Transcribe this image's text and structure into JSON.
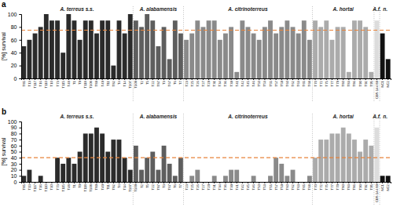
{
  "chart_data": [
    {
      "type": "bar",
      "panel_label": "a",
      "y_label": "[%] survival",
      "ylim": [
        0,
        100
      ],
      "yticks": [
        0,
        20,
        40,
        60,
        80,
        100
      ],
      "threshold": 75,
      "threshold_color": "#e8833a",
      "series": [
        {
          "name": "A. terreus s.s.",
          "color": "#2b2b2b",
          "categories": [
            "T85",
            "T13",
            "T117",
            "T16",
            "T110",
            "T10",
            "T73",
            "T115",
            "T48",
            "T1",
            "T9",
            "T118",
            "T108",
            "T89",
            "T49",
            "T11",
            "T82",
            "T4",
            "T14",
            "T107"
          ],
          "values": [
            50,
            60,
            70,
            80,
            100,
            90,
            90,
            40,
            100,
            90,
            60,
            90,
            90,
            70,
            90,
            90,
            20,
            90,
            70,
            100
          ]
        },
        {
          "name": "A. alabamensis",
          "color": "#5e5e5e",
          "categories": [
            "T109",
            "T2",
            "T5",
            "T22",
            "T87",
            "T3",
            "T67",
            "T6",
            "T7"
          ],
          "values": [
            90,
            80,
            100,
            90,
            50,
            80,
            30,
            90,
            70
          ]
        },
        {
          "name": "A. citrinoterreus",
          "color": "#8a8a8a",
          "categories": [
            "T23",
            "T25",
            "T26",
            "T27",
            "T29",
            "T31",
            "T34",
            "T36",
            "T39",
            "T41",
            "T42",
            "T45",
            "T46",
            "T50",
            "T53",
            "T55",
            "T57",
            "T59",
            "T60",
            "T62",
            "T63",
            "T65",
            "T68"
          ],
          "values": [
            60,
            70,
            90,
            80,
            90,
            90,
            60,
            70,
            80,
            10,
            90,
            80,
            70,
            60,
            80,
            90,
            70,
            80,
            90,
            80,
            70,
            90,
            60
          ]
        },
        {
          "name": "A. hortai",
          "color": "#ababab",
          "categories": [
            "T70",
            "T72",
            "T75",
            "T77",
            "T79",
            "T80",
            "T83",
            "T86",
            "T90",
            "T92",
            "T95"
          ],
          "values": [
            90,
            80,
            90,
            60,
            80,
            80,
            10,
            90,
            90,
            80,
            10
          ]
        },
        {
          "name": "A.f.",
          "color": "#dcdcdc",
          "categories": [
            "CBS 144.89"
          ],
          "values": [
            90
          ]
        },
        {
          "name": "n.",
          "color": "#111111",
          "categories": [
            "NC1",
            "NC2"
          ],
          "values": [
            70,
            30
          ]
        }
      ]
    },
    {
      "type": "bar",
      "panel_label": "b",
      "y_label": "[%] survival",
      "ylim": [
        0,
        100
      ],
      "yticks": [
        0,
        10,
        20,
        30,
        40,
        50,
        60,
        70,
        80,
        90,
        100
      ],
      "threshold": 40,
      "threshold_color": "#e8833a",
      "series": [
        {
          "name": "A. terreus s.s.",
          "color": "#2b2b2b",
          "categories": [
            "T85",
            "T13",
            "T117",
            "T16",
            "T110",
            "T10",
            "T73",
            "T115",
            "T48",
            "T1",
            "T9",
            "T118",
            "T108",
            "T89",
            "T49",
            "T11",
            "T82",
            "T4",
            "T14",
            "T107"
          ],
          "values": [
            10,
            20,
            0,
            10,
            0,
            0,
            40,
            30,
            40,
            30,
            50,
            80,
            80,
            90,
            80,
            50,
            70,
            70,
            40,
            20
          ]
        },
        {
          "name": "A. alabamensis",
          "color": "#5e5e5e",
          "categories": [
            "T109",
            "T2",
            "T5",
            "T22",
            "T87",
            "T3",
            "T67",
            "T6",
            "T7"
          ],
          "values": [
            60,
            20,
            40,
            50,
            20,
            60,
            30,
            10,
            40
          ]
        },
        {
          "name": "A. citrinoterreus",
          "color": "#8a8a8a",
          "categories": [
            "T23",
            "T25",
            "T26",
            "T27",
            "T29",
            "T31",
            "T34",
            "T36",
            "T39",
            "T41",
            "T42",
            "T45",
            "T46",
            "T50",
            "T53",
            "T55",
            "T57",
            "T59",
            "T60",
            "T62",
            "T63",
            "T65",
            "T68"
          ],
          "values": [
            0,
            10,
            20,
            0,
            0,
            10,
            0,
            10,
            20,
            20,
            0,
            0,
            10,
            0,
            0,
            10,
            40,
            30,
            10,
            20,
            0,
            0,
            10
          ]
        },
        {
          "name": "A. hortai",
          "color": "#ababab",
          "categories": [
            "T70",
            "T72",
            "T75",
            "T77",
            "T79",
            "T80",
            "T83",
            "T86",
            "T90",
            "T92",
            "T95"
          ],
          "values": [
            40,
            70,
            70,
            80,
            80,
            90,
            80,
            70,
            50,
            70,
            60
          ]
        },
        {
          "name": "A.f.",
          "color": "#dcdcdc",
          "categories": [
            "CBS 144.89"
          ],
          "values": [
            90
          ]
        },
        {
          "name": "n.",
          "color": "#111111",
          "categories": [
            "NC1",
            "NC2"
          ],
          "values": [
            10,
            10
          ]
        }
      ]
    }
  ]
}
